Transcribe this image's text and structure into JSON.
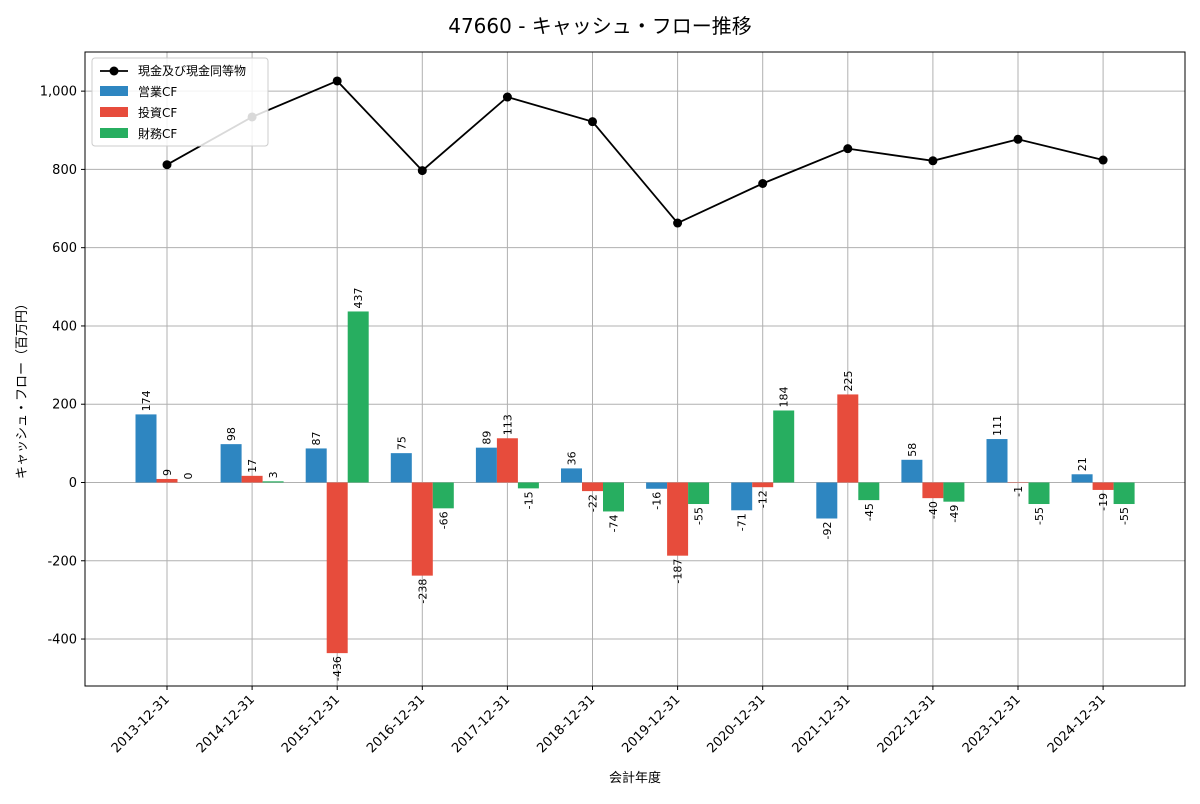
{
  "chart_data": {
    "type": "bar+line",
    "title": "47660 - キャッシュ・フロー推移",
    "xlabel": "会計年度",
    "ylabel": "キャッシュ・フロー（百万円）",
    "ylim": [
      -520,
      1100
    ],
    "yticks": [
      -400,
      -200,
      0,
      200,
      400,
      600,
      800,
      1000
    ],
    "ytick_labels": [
      "-400",
      "-200",
      "0",
      "200",
      "400",
      "600",
      "800",
      "1,000"
    ],
    "grid": true,
    "legend_position": "upper-left",
    "categories": [
      "2013-12-31",
      "2014-12-31",
      "2015-12-31",
      "2016-12-31",
      "2017-12-31",
      "2018-12-31",
      "2019-12-31",
      "2020-12-31",
      "2021-12-31",
      "2022-12-31",
      "2023-12-31",
      "2024-12-31"
    ],
    "series": [
      {
        "name": "営業CF",
        "kind": "bar",
        "color": "#2e86c1",
        "values": [
          174,
          98,
          87,
          75,
          89,
          36,
          -16,
          -71,
          -92,
          58,
          111,
          21
        ]
      },
      {
        "name": "投資CF",
        "kind": "bar",
        "color": "#e74c3c",
        "values": [
          9,
          17,
          -436,
          -238,
          113,
          -22,
          -187,
          -12,
          225,
          -40,
          -1,
          -19
        ]
      },
      {
        "name": "財務CF",
        "kind": "bar",
        "color": "#27ae60",
        "values": [
          0,
          3,
          437,
          -66,
          -15,
          -74,
          -55,
          184,
          -45,
          -49,
          -55,
          -55
        ]
      }
    ],
    "line": {
      "name": "現金及び現金同等物",
      "color": "#000000",
      "values": [
        812,
        934,
        1026,
        797,
        985,
        922,
        663,
        764,
        853,
        822,
        877,
        824
      ]
    },
    "bar_labels": [
      [
        "174",
        "98",
        "87",
        "75",
        "89",
        "36",
        "-16",
        "-71",
        "-92",
        "58",
        "111",
        "21"
      ],
      [
        "9",
        "17",
        "-436",
        "-238",
        "113",
        "-22",
        "-187",
        "-12",
        "225",
        "-40",
        "-1",
        "-19"
      ],
      [
        "0",
        "3",
        "437",
        "-66",
        "-15",
        "-74",
        "-55",
        "184",
        "-45",
        "-49",
        "-55",
        "-55"
      ]
    ]
  }
}
